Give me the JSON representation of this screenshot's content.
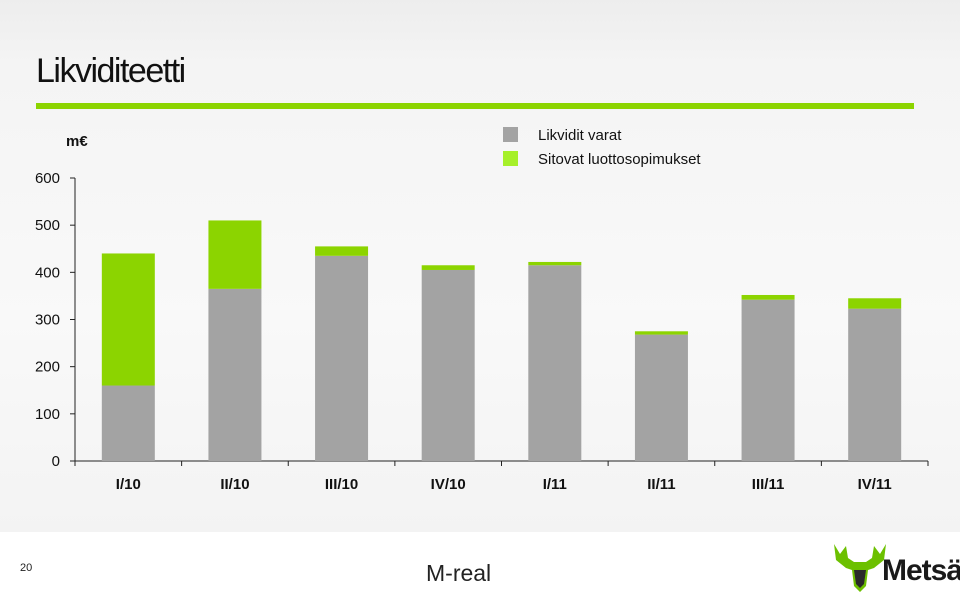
{
  "title": "Likviditeetti",
  "page_number": "20",
  "footer_brand": "M-real",
  "logo_text": "Metsä",
  "colors": {
    "accent": "#8cd400",
    "liquid_assets": "#a3a3a3",
    "committed_facilities": "#8cd400",
    "legend_committed": "#a6f02a"
  },
  "chart_data": {
    "type": "bar",
    "stacked": true,
    "unit_label": "m€",
    "categories": [
      "I/10",
      "II/10",
      "III/10",
      "IV/10",
      "I/11",
      "II/11",
      "III/11",
      "IV/11"
    ],
    "series": [
      {
        "name": "Likvidit varat",
        "values": [
          160,
          365,
          435,
          405,
          415,
          268,
          342,
          323
        ]
      },
      {
        "name": "Sitovat luottosopimukset",
        "values": [
          280,
          145,
          20,
          10,
          7,
          7,
          10,
          22
        ]
      }
    ],
    "y_ticks": [
      "0",
      "100",
      "200",
      "300",
      "400",
      "500",
      "600"
    ],
    "ylim": [
      0,
      600
    ],
    "legend_position": "top-center"
  }
}
